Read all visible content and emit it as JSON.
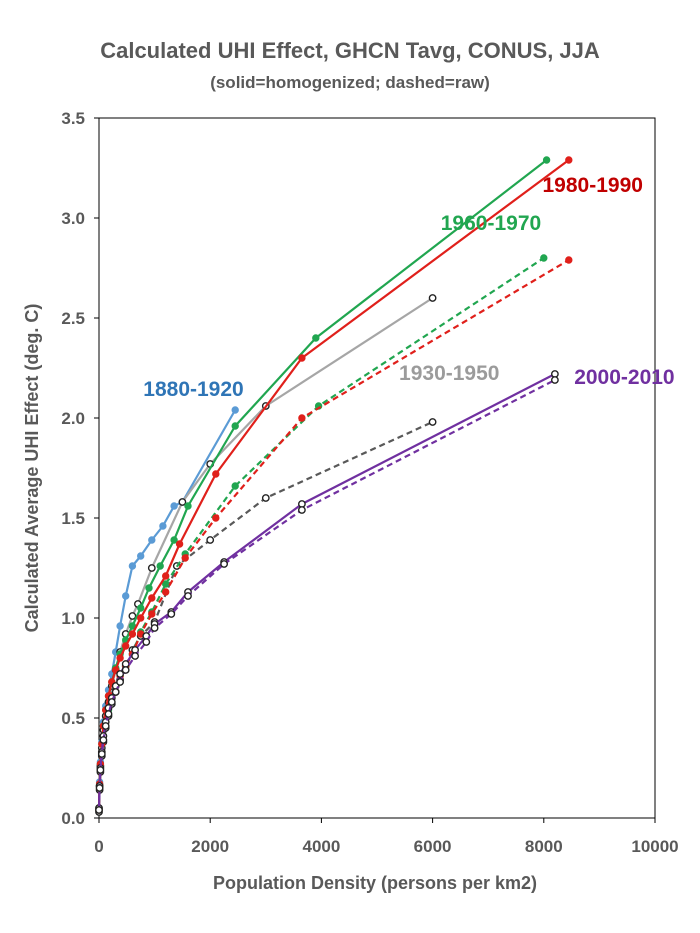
{
  "chart_data": {
    "type": "line",
    "title": "Calculated UHI Effect, GHCN Tavg, CONUS, JJA",
    "subtitle": "(solid=homogenized; dashed=raw)",
    "xlabel": "Population Density (persons per km2)",
    "ylabel": "Calculated Average UHI Effect (deg. C)",
    "xlim": [
      0,
      10000
    ],
    "ylim": [
      0,
      3.5
    ],
    "xticks": [
      0,
      2000,
      4000,
      6000,
      8000,
      10000
    ],
    "xtick_labels": [
      "0",
      "2000",
      "4000",
      "6000",
      "8000",
      "10000"
    ],
    "yticks": [
      0,
      0.5,
      1.0,
      1.5,
      2.0,
      2.5,
      3.0,
      3.5
    ],
    "ytick_labels": [
      "0.0",
      "0.5",
      "1.0",
      "1.5",
      "2.0",
      "2.5",
      "3.0",
      "3.5"
    ],
    "grid": false,
    "series": [
      {
        "name": "1880-1920",
        "color": "#5B9BD5",
        "style": "solid",
        "marker": "filled",
        "x": [
          0,
          10,
          25,
          50,
          80,
          120,
          170,
          230,
          300,
          380,
          480,
          600,
          750,
          950,
          1150,
          1350,
          1500,
          2450
        ],
        "y": [
          0.05,
          0.18,
          0.28,
          0.38,
          0.48,
          0.56,
          0.64,
          0.72,
          0.83,
          0.96,
          1.11,
          1.26,
          1.31,
          1.39,
          1.46,
          1.56,
          1.58,
          2.04
        ]
      },
      {
        "name": "1930-1950",
        "color": "#A6A6A6",
        "style": "solid",
        "marker": "open",
        "x": [
          0,
          10,
          25,
          50,
          80,
          120,
          170,
          230,
          300,
          380,
          480,
          600,
          700,
          950,
          1500,
          2000,
          3000,
          6000
        ],
        "y": [
          0.04,
          0.16,
          0.26,
          0.35,
          0.44,
          0.51,
          0.58,
          0.66,
          0.74,
          0.83,
          0.92,
          1.01,
          1.07,
          1.25,
          1.58,
          1.77,
          2.06,
          2.6
        ]
      },
      {
        "name": "1930-1950 raw",
        "color": "#595959",
        "style": "dashed",
        "marker": "open",
        "x": [
          0,
          10,
          25,
          50,
          80,
          120,
          170,
          230,
          300,
          380,
          480,
          600,
          750,
          1000,
          1400,
          2000,
          3000,
          6000
        ],
        "y": [
          0.03,
          0.14,
          0.23,
          0.31,
          0.38,
          0.45,
          0.51,
          0.57,
          0.63,
          0.69,
          0.76,
          0.84,
          0.91,
          0.98,
          1.26,
          1.39,
          1.6,
          1.98
        ]
      },
      {
        "name": "1960-1970",
        "color": "#21A650",
        "style": "solid",
        "marker": "filled",
        "x": [
          0,
          10,
          25,
          50,
          80,
          120,
          170,
          230,
          300,
          380,
          480,
          600,
          750,
          900,
          1100,
          1350,
          1600,
          2450,
          3900,
          8050
        ],
        "y": [
          0.05,
          0.17,
          0.27,
          0.37,
          0.46,
          0.54,
          0.61,
          0.68,
          0.75,
          0.82,
          0.89,
          0.96,
          1.05,
          1.15,
          1.26,
          1.39,
          1.56,
          1.96,
          2.4,
          3.29
        ]
      },
      {
        "name": "1960-1970 raw",
        "color": "#21A650",
        "style": "dashed",
        "marker": "filled",
        "x": [
          0,
          10,
          25,
          50,
          80,
          120,
          170,
          230,
          300,
          380,
          480,
          600,
          750,
          950,
          1200,
          1550,
          2450,
          3950,
          8000
        ],
        "y": [
          0.04,
          0.15,
          0.24,
          0.33,
          0.41,
          0.48,
          0.54,
          0.6,
          0.66,
          0.71,
          0.76,
          0.82,
          0.93,
          1.03,
          1.17,
          1.32,
          1.66,
          2.06,
          2.8
        ]
      },
      {
        "name": "1980-1990",
        "color": "#E0201B",
        "style": "solid",
        "marker": "filled",
        "x": [
          0,
          10,
          25,
          50,
          80,
          120,
          170,
          230,
          300,
          380,
          480,
          600,
          750,
          950,
          1200,
          1450,
          2100,
          3650,
          8450
        ],
        "y": [
          0.05,
          0.17,
          0.27,
          0.37,
          0.46,
          0.54,
          0.61,
          0.68,
          0.74,
          0.8,
          0.86,
          0.92,
          1.0,
          1.1,
          1.21,
          1.37,
          1.72,
          2.3,
          3.29
        ]
      },
      {
        "name": "1980-1990 raw",
        "color": "#E0201B",
        "style": "dashed",
        "marker": "filled",
        "x": [
          0,
          10,
          25,
          50,
          80,
          120,
          170,
          230,
          300,
          380,
          480,
          600,
          750,
          950,
          1200,
          1550,
          2100,
          3650,
          8450
        ],
        "y": [
          0.04,
          0.15,
          0.24,
          0.33,
          0.41,
          0.48,
          0.55,
          0.61,
          0.66,
          0.71,
          0.76,
          0.82,
          0.92,
          1.02,
          1.13,
          1.3,
          1.5,
          2.0,
          2.79
        ]
      },
      {
        "name": "2000-2010",
        "color": "#7030A0",
        "style": "solid",
        "marker": "open",
        "x": [
          0,
          10,
          25,
          50,
          80,
          120,
          170,
          230,
          300,
          380,
          480,
          650,
          850,
          1000,
          1300,
          1600,
          2250,
          3650,
          8200
        ],
        "y": [
          0.05,
          0.16,
          0.25,
          0.33,
          0.41,
          0.48,
          0.55,
          0.6,
          0.66,
          0.72,
          0.77,
          0.84,
          0.91,
          0.97,
          1.03,
          1.13,
          1.28,
          1.57,
          2.22
        ]
      },
      {
        "name": "2000-2010 raw",
        "color": "#7030A0",
        "style": "dashed",
        "marker": "open",
        "x": [
          0,
          10,
          25,
          50,
          80,
          120,
          170,
          230,
          300,
          380,
          480,
          650,
          850,
          1000,
          1300,
          1600,
          2250,
          3650,
          8200
        ],
        "y": [
          0.04,
          0.15,
          0.24,
          0.32,
          0.39,
          0.46,
          0.52,
          0.58,
          0.63,
          0.68,
          0.74,
          0.81,
          0.88,
          0.95,
          1.02,
          1.11,
          1.27,
          1.54,
          2.19
        ]
      }
    ],
    "annotations": [
      {
        "text": "1880-1920",
        "color": "#2F75B6",
        "x": 1700,
        "y": 2.11
      },
      {
        "text": "1930-1950",
        "color": "#9B9B9B",
        "x": 6300,
        "y": 2.19
      },
      {
        "text": "1960-1970",
        "color": "#21A650",
        "x": 7050,
        "y": 2.94
      },
      {
        "text": "1980-1990",
        "color": "#C00000",
        "x": 8880,
        "y": 3.13
      },
      {
        "text": "2000-2010",
        "color": "#7030A0",
        "x": 9450,
        "y": 2.17
      }
    ]
  }
}
